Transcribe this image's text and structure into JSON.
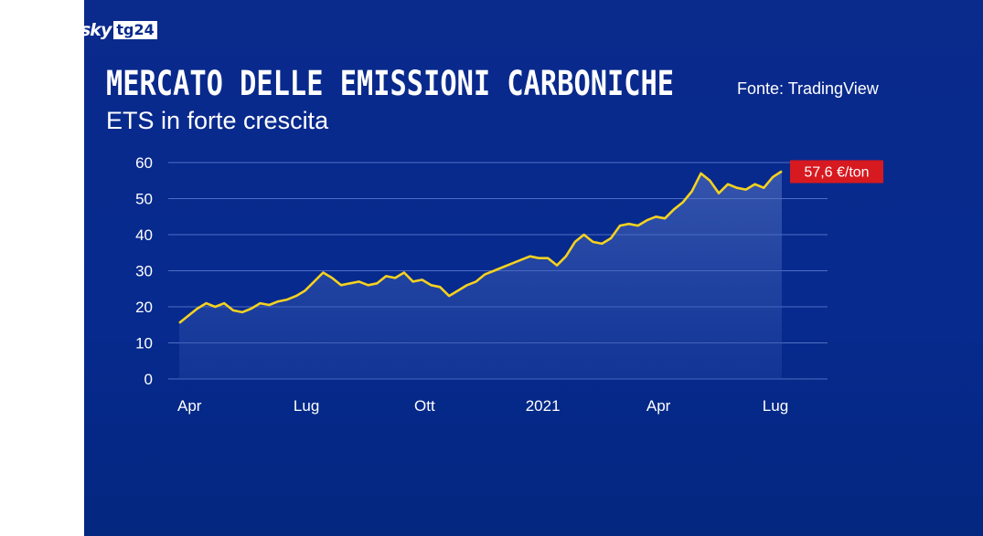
{
  "brand": {
    "sky": "sky",
    "tg": "tg24"
  },
  "title": "MERCATO DELLE EMISSIONI CARBONICHE",
  "subtitle": "ETS in forte crescita",
  "source": "Fonte: TradingView",
  "colors": {
    "background": "#0a2a8c",
    "line": "#f5d21f",
    "badge": "#d71920"
  },
  "chart_data": {
    "type": "area",
    "y_ticks": [
      "0",
      "10",
      "20",
      "30",
      "40",
      "50",
      "60"
    ],
    "ylim": [
      0,
      60
    ],
    "x_tick_labels": [
      "Apr",
      "Lug",
      "Ott",
      "2021",
      "Apr",
      "Lug"
    ],
    "x_tick_dates": [
      "2020-04-01",
      "2020-07-01",
      "2020-10-01",
      "2021-01-01",
      "2021-04-01",
      "2021-07-01"
    ],
    "grid": true,
    "last_value_label": "57,6 €/ton",
    "series": [
      {
        "dates": [
          "2020-03-24",
          "2020-03-31",
          "2020-04-07",
          "2020-04-14",
          "2020-04-21",
          "2020-04-28",
          "2020-05-05",
          "2020-05-12",
          "2020-05-19",
          "2020-05-26",
          "2020-06-02",
          "2020-06-09",
          "2020-06-16",
          "2020-06-23",
          "2020-06-30",
          "2020-07-07",
          "2020-07-14",
          "2020-07-21",
          "2020-07-28",
          "2020-08-04",
          "2020-08-11",
          "2020-08-18",
          "2020-08-25",
          "2020-09-01",
          "2020-09-08",
          "2020-09-15",
          "2020-09-22",
          "2020-09-29",
          "2020-10-06",
          "2020-10-13",
          "2020-10-20",
          "2020-10-27",
          "2020-11-03",
          "2020-11-10",
          "2020-11-17",
          "2020-11-24",
          "2020-12-01",
          "2020-12-08",
          "2020-12-15",
          "2020-12-22",
          "2020-12-29",
          "2021-01-05",
          "2021-01-12",
          "2021-01-19",
          "2021-01-26",
          "2021-02-02",
          "2021-02-09",
          "2021-02-16",
          "2021-02-23",
          "2021-03-02",
          "2021-03-09",
          "2021-03-16",
          "2021-03-23",
          "2021-03-30",
          "2021-04-06",
          "2021-04-13",
          "2021-04-20",
          "2021-04-27",
          "2021-05-04",
          "2021-05-11",
          "2021-05-18",
          "2021-05-25",
          "2021-06-01",
          "2021-06-08",
          "2021-06-15",
          "2021-06-22",
          "2021-06-29",
          "2021-07-06"
        ],
        "values": [
          15.5,
          17.5,
          19.5,
          21,
          20,
          21,
          19,
          18.5,
          19.5,
          21,
          20.5,
          21.5,
          22,
          23,
          24.5,
          27,
          29.5,
          28,
          26,
          26.5,
          27,
          26,
          26.5,
          28.5,
          28,
          29.5,
          27,
          27.5,
          26,
          25.5,
          23,
          24.5,
          26,
          27,
          29,
          30,
          31,
          32,
          33,
          34,
          33.5,
          33.5,
          31.5,
          34,
          38,
          40,
          38,
          37.5,
          39,
          42.5,
          43,
          42.5,
          44,
          45,
          44.5,
          47,
          49,
          52,
          57,
          55,
          51.5,
          54,
          53,
          52.5,
          54,
          53,
          56,
          57.6
        ]
      }
    ]
  }
}
